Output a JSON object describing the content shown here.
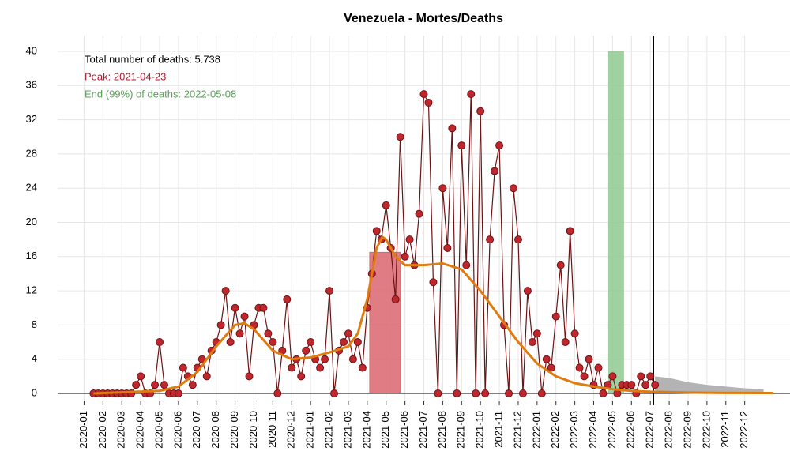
{
  "chart_data": {
    "type": "scatter-line",
    "title": "Venezuela - Mortes/Deaths",
    "annotations": [
      {
        "text": "Total number of deaths: 5.738",
        "color": "#000000"
      },
      {
        "text": "Peak: 2021-04-23",
        "color": "#b2182b"
      },
      {
        "text": "End (99%) of deaths: 2022-05-08",
        "color": "#5a9e5a"
      }
    ],
    "xlim": [
      -1.4,
      37.4
    ],
    "xticks": [
      {
        "value": 0,
        "label": "2020-01"
      },
      {
        "value": 1,
        "label": "2020-02"
      },
      {
        "value": 2,
        "label": "2020-03"
      },
      {
        "value": 3,
        "label": "2020-04"
      },
      {
        "value": 4,
        "label": "2020-05"
      },
      {
        "value": 5,
        "label": "2020-06"
      },
      {
        "value": 6,
        "label": "2020-07"
      },
      {
        "value": 7,
        "label": "2020-08"
      },
      {
        "value": 8,
        "label": "2020-09"
      },
      {
        "value": 9,
        "label": "2020-10"
      },
      {
        "value": 10,
        "label": "2020-11"
      },
      {
        "value": 11,
        "label": "2020-12"
      },
      {
        "value": 12,
        "label": "2021-01"
      },
      {
        "value": 13,
        "label": "2021-02"
      },
      {
        "value": 14,
        "label": "2021-03"
      },
      {
        "value": 15,
        "label": "2021-04"
      },
      {
        "value": 16,
        "label": "2021-05"
      },
      {
        "value": 17,
        "label": "2021-06"
      },
      {
        "value": 18,
        "label": "2021-07"
      },
      {
        "value": 19,
        "label": "2021-08"
      },
      {
        "value": 20,
        "label": "2021-09"
      },
      {
        "value": 21,
        "label": "2021-10"
      },
      {
        "value": 22,
        "label": "2021-11"
      },
      {
        "value": 23,
        "label": "2021-12"
      },
      {
        "value": 24,
        "label": "2022-01"
      },
      {
        "value": 25,
        "label": "2022-02"
      },
      {
        "value": 26,
        "label": "2022-03"
      },
      {
        "value": 27,
        "label": "2022-04"
      },
      {
        "value": 28,
        "label": "2022-05"
      },
      {
        "value": 29,
        "label": "2022-06"
      },
      {
        "value": 30,
        "label": "2022-07"
      },
      {
        "value": 31,
        "label": "2022-08"
      },
      {
        "value": 32,
        "label": "2022-09"
      },
      {
        "value": 33,
        "label": "2022-10"
      },
      {
        "value": 34,
        "label": "2022-11"
      },
      {
        "value": 35,
        "label": "2022-12"
      }
    ],
    "ylim": [
      0,
      40
    ],
    "yticks": [
      0,
      4,
      8,
      12,
      16,
      20,
      24,
      28,
      32,
      36,
      40
    ],
    "grid": true,
    "bands": [
      {
        "x": [
          15.13,
          16.76
        ],
        "top": 16.5,
        "color": "#d9656f"
      },
      {
        "x": [
          27.75,
          28.58
        ],
        "top": 40,
        "color": "#8fc98f"
      }
    ],
    "vline": 30.18,
    "forecast": {
      "color": "#b3b3b3",
      "x": [
        30.25,
        31,
        32,
        33,
        34,
        35,
        36
      ],
      "values": [
        2,
        1.8,
        1.3,
        1,
        0.8,
        0.6,
        0.5
      ]
    },
    "series": [
      {
        "color": "#c0272d",
        "line_color": "#6b1416",
        "x": [
          0.5,
          0.75,
          1,
          1.25,
          1.5,
          1.75,
          2,
          2.25,
          2.5,
          2.75,
          3,
          3.25,
          3.5,
          3.75,
          4,
          4.25,
          4.5,
          4.75,
          5,
          5.25,
          5.5,
          5.75,
          6,
          6.25,
          6.5,
          6.75,
          7,
          7.25,
          7.5,
          7.75,
          8,
          8.25,
          8.5,
          8.75,
          9,
          9.25,
          9.5,
          9.75,
          10,
          10.25,
          10.5,
          10.75,
          11,
          11.25,
          11.5,
          11.75,
          12,
          12.25,
          12.5,
          12.75,
          13,
          13.25,
          13.5,
          13.75,
          14,
          14.25,
          14.5,
          14.75,
          15,
          15.25,
          15.5,
          15.75,
          16,
          16.25,
          16.5,
          16.75,
          17,
          17.25,
          17.5,
          17.75,
          18,
          18.25,
          18.5,
          18.75,
          19,
          19.25,
          19.5,
          19.75,
          20,
          20.25,
          20.5,
          20.75,
          21,
          21.25,
          21.5,
          21.75,
          22,
          22.25,
          22.5,
          22.75,
          23,
          23.25,
          23.5,
          23.75,
          24,
          24.25,
          24.5,
          24.75,
          25,
          25.25,
          25.5,
          25.75,
          26,
          26.25,
          26.5,
          26.75,
          27,
          27.25,
          27.5,
          27.75,
          28,
          28.25,
          28.5,
          28.75,
          29,
          29.25,
          29.5,
          29.75,
          30,
          30.25
        ],
        "values": [
          0,
          0,
          0,
          0,
          0,
          0,
          0,
          0,
          0,
          1,
          2,
          0,
          0,
          1,
          6,
          1,
          0,
          0,
          0,
          3,
          2,
          1,
          3,
          4,
          2,
          5,
          6,
          8,
          12,
          6,
          10,
          7,
          9,
          2,
          8,
          10,
          10,
          7,
          6,
          0,
          5,
          11,
          3,
          4,
          2,
          5,
          6,
          4,
          3,
          4,
          12,
          0,
          5,
          6,
          7,
          4,
          6,
          3,
          10,
          14,
          19,
          18,
          22,
          17,
          11,
          30,
          16,
          18,
          15,
          21,
          35,
          34,
          13,
          0,
          24,
          17,
          31,
          0,
          29,
          15,
          35,
          0,
          33,
          0,
          18,
          26,
          29,
          8,
          0,
          24,
          18,
          0,
          12,
          6,
          7,
          0,
          4,
          3,
          9,
          15,
          6,
          19,
          7,
          3,
          2,
          4,
          1,
          3,
          0,
          1,
          2,
          0,
          1,
          1,
          1,
          0,
          2,
          1,
          2,
          1
        ]
      },
      {
        "type": "line",
        "color": "#e07b10",
        "x": [
          0.5,
          4,
          5,
          6,
          7,
          8,
          8.5,
          9,
          10,
          11,
          12,
          13,
          14,
          14.5,
          15,
          15.5,
          15.8,
          16,
          16.5,
          17,
          18,
          19,
          20,
          21,
          22,
          23,
          24,
          25,
          26,
          27,
          28,
          29,
          30,
          32,
          34,
          36.5
        ],
        "values": [
          0,
          0.3,
          0.8,
          2.5,
          5.5,
          8,
          8.2,
          7.5,
          5,
          4,
          4.2,
          4.8,
          5.5,
          7,
          11,
          17,
          18.3,
          18,
          16,
          15,
          15,
          15.2,
          14.5,
          12,
          9,
          6,
          3.5,
          2,
          1.2,
          0.8,
          0.5,
          0.3,
          0.2,
          0.1,
          0.06,
          0.05
        ]
      }
    ]
  }
}
